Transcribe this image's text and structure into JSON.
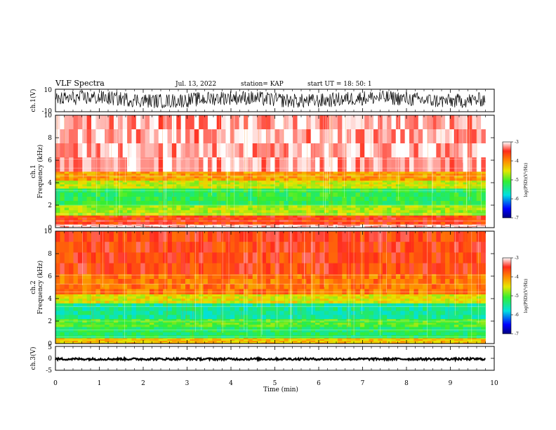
{
  "header": {
    "title": "VLF Spectra",
    "date": "Jul. 13, 2022",
    "station": "station= KAP",
    "start": "start UT = 18: 50: 1"
  },
  "colors": {
    "red": "#ff2a1a",
    "orange": "#ff8a00",
    "yellow": "#e6e600",
    "green": "#33ee33",
    "cyan": "#00e0e0",
    "blue": "#0000ff",
    "dark_blue": "#000080",
    "waveform": "#000000"
  },
  "chart_data": [
    {
      "type": "line",
      "name": "ch1-waveform",
      "ylabel": "ch.1(V)",
      "ylim": [
        -10,
        10
      ],
      "y_ticks": [
        "10",
        "-10"
      ],
      "xlim": [
        0,
        10
      ],
      "description_of_data": "dense noisy voltage waveform spanning roughly -6 to +8 V over 0–9.8 min"
    },
    {
      "type": "heatmap",
      "name": "ch1-spectrogram",
      "ylabel": "ch.1\nFrequency (kHz)",
      "ylim": [
        0,
        10
      ],
      "y_ticks": [
        "0",
        "2",
        "4",
        "6",
        "8",
        "10"
      ],
      "xlim": [
        0,
        10
      ],
      "data_end_min": 9.8,
      "bands": [
        {
          "from": 0.0,
          "to": 0.3,
          "level": -3.1
        },
        {
          "from": 0.3,
          "to": 1.1,
          "level": -3.6
        },
        {
          "from": 1.1,
          "to": 2.0,
          "level": -4.7
        },
        {
          "from": 2.0,
          "to": 3.5,
          "level": -5.2
        },
        {
          "from": 3.5,
          "to": 4.2,
          "level": -4.6
        },
        {
          "from": 4.2,
          "to": 5.0,
          "level": -4.1
        },
        {
          "from": 5.0,
          "to": 10.0,
          "level": -3.2
        }
      ],
      "colorbar": {
        "label": "log(PSD)(V²/Hz)",
        "min": -7,
        "max": -3,
        "ticks": [
          "-3",
          "-4",
          "-5",
          "-6",
          "-7"
        ]
      }
    },
    {
      "type": "heatmap",
      "name": "ch2-spectrogram",
      "ylabel": "ch.2\nFrequency (kHz)",
      "ylim": [
        0,
        10
      ],
      "y_ticks": [
        "0",
        "2",
        "4",
        "6",
        "8",
        "10"
      ],
      "xlim": [
        0,
        10
      ],
      "data_end_min": 9.8,
      "bands": [
        {
          "from": 0.0,
          "to": 0.5,
          "level": -4.3
        },
        {
          "from": 0.5,
          "to": 1.5,
          "level": -5.3
        },
        {
          "from": 1.5,
          "to": 2.2,
          "level": -5.0
        },
        {
          "from": 2.2,
          "to": 3.6,
          "level": -5.5
        },
        {
          "from": 3.6,
          "to": 4.4,
          "level": -4.5
        },
        {
          "from": 4.4,
          "to": 6.2,
          "level": -3.9
        },
        {
          "from": 6.2,
          "to": 10.0,
          "level": -3.6
        }
      ],
      "colorbar": {
        "label": "log(PSD)(V²/Hz)",
        "min": -7,
        "max": -3,
        "ticks": [
          "-3",
          "-4",
          "-5",
          "-6",
          "-7"
        ]
      }
    },
    {
      "type": "line",
      "name": "ch3-waveform",
      "ylabel": "ch.3(V)",
      "ylim": [
        -5,
        5
      ],
      "y_ticks": [
        "5",
        "0",
        "-5"
      ],
      "xlim": [
        0,
        10
      ],
      "description_of_data": "nearly constant dense trace around -0.3 V with ~±0.3 V noise"
    }
  ],
  "x_axis": {
    "label": "Time (min)",
    "ticks": [
      "0",
      "1",
      "2",
      "3",
      "4",
      "5",
      "6",
      "7",
      "8",
      "9",
      "10"
    ]
  }
}
